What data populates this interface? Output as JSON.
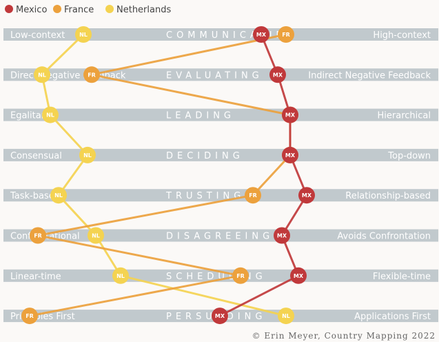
{
  "chart_data": {
    "type": "line",
    "title": "Country Mapping",
    "scale": [
      0,
      100
    ],
    "dimensions": [
      {
        "name": "COMMUNICATING",
        "left": "Low-context",
        "right": "High-context"
      },
      {
        "name": "EVALUATING",
        "left": "Direct Negative Feedback",
        "right": "Indirect Negative Feedback"
      },
      {
        "name": "LEADING",
        "left": "Egalitarian",
        "right": "Hierarchical"
      },
      {
        "name": "DECIDING",
        "left": "Consensual",
        "right": "Top-down"
      },
      {
        "name": "TRUSTING",
        "left": "Task-based",
        "right": "Relationship-based"
      },
      {
        "name": "DISAGREEING",
        "left": "Confrontational",
        "right": "Avoids Confrontation"
      },
      {
        "name": "SCHEDULING",
        "left": "Linear-time",
        "right": "Flexible-time"
      },
      {
        "name": "PERSUADING",
        "left": "Principles First",
        "right": "Applications First"
      }
    ],
    "series": [
      {
        "name": "Mexico",
        "abbr": "MX",
        "color": "#c0393b",
        "values": [
          59,
          63,
          66,
          66,
          70,
          64,
          68,
          49
        ]
      },
      {
        "name": "France",
        "abbr": "FR",
        "color": "#eca13d",
        "values": [
          65,
          18,
          66,
          66,
          57,
          5,
          54,
          3
        ]
      },
      {
        "name": "Netherlands",
        "abbr": "NL",
        "color": "#f4d351",
        "values": [
          16,
          6,
          8,
          17,
          10,
          19,
          25,
          65
        ]
      }
    ],
    "credit": "© Erin Meyer, Country Mapping 2022"
  }
}
